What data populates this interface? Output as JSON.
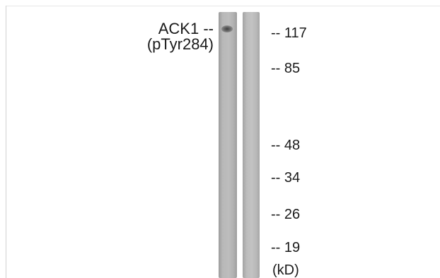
{
  "blot": {
    "target_label": "ACK1 --",
    "site_label": "(pTyr284)",
    "lane_count": 2,
    "lane_color": "#b8b8b8",
    "band_color": "#3e3e3e"
  },
  "markers": [
    "-- 117",
    "-- 85",
    "-- 48",
    "-- 34",
    "-- 26",
    "-- 19"
  ],
  "unit_label": "(kD)"
}
